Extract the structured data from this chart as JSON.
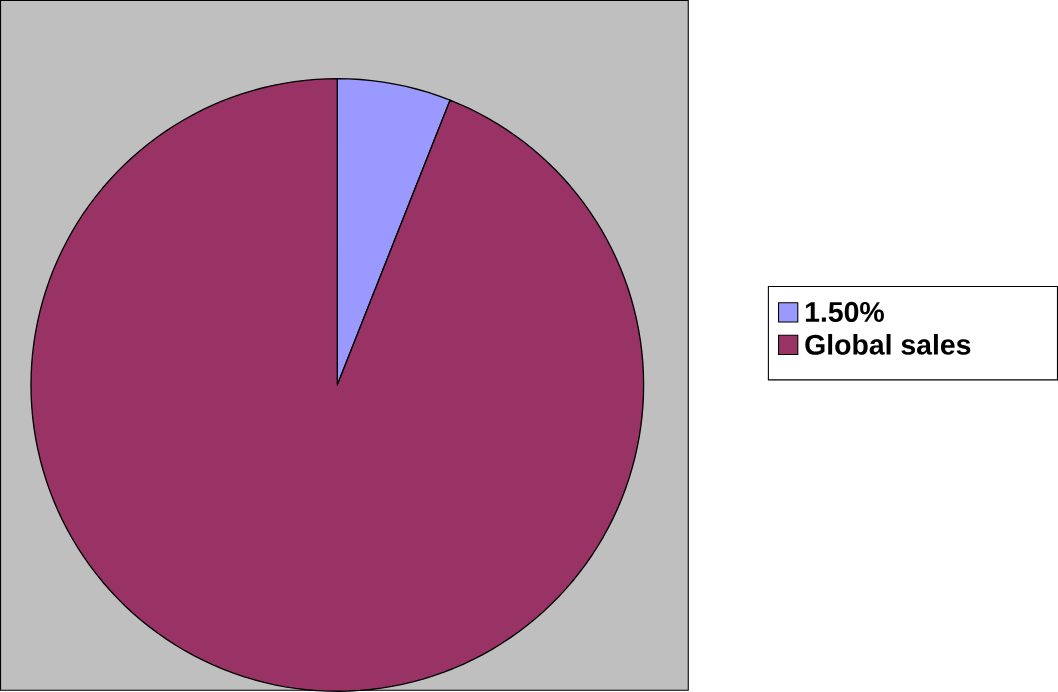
{
  "chart_data": {
    "type": "pie",
    "categories": [
      "1.50%",
      "Global sales"
    ],
    "values": [
      6,
      94
    ],
    "colors": [
      "#9999ff",
      "#993366"
    ],
    "legend": "right"
  }
}
